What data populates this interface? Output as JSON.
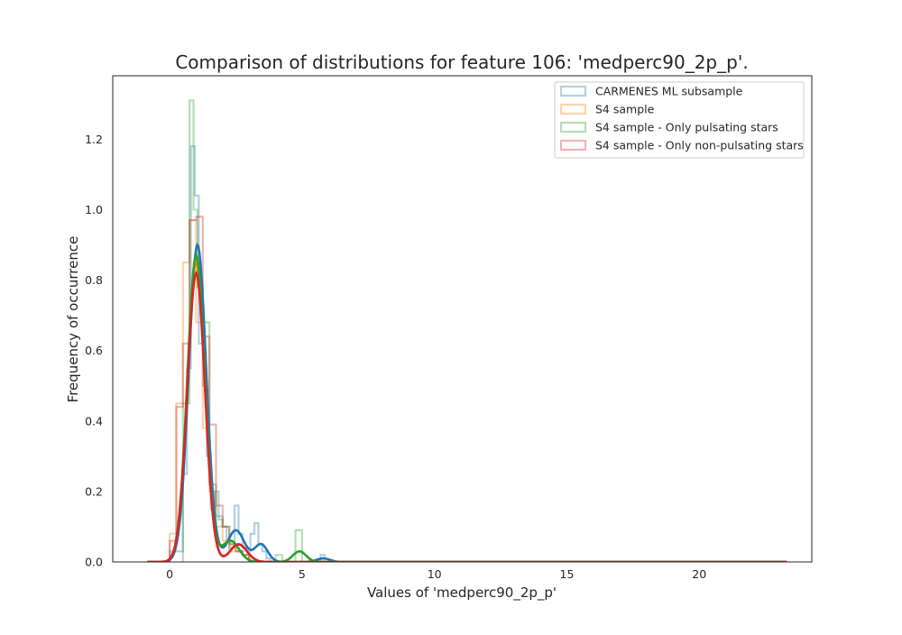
{
  "chart_data": {
    "type": "histogram+kde",
    "title": "Comparison of distributions for feature 106: 'medperc90_2p_p'.",
    "xlabel": "Values of 'medperc90_2p_p'",
    "ylabel": "Frequency of occurrence",
    "xlim": [
      -2.15,
      24.25
    ],
    "ylim": [
      0,
      1.38
    ],
    "xticks": [
      0,
      5,
      10,
      15,
      20
    ],
    "xtick_labels": [
      "0",
      "5",
      "10",
      "15",
      "20"
    ],
    "yticks": [
      0.0,
      0.2,
      0.4,
      0.6,
      0.8,
      1.0,
      1.2
    ],
    "ytick_labels": [
      "0.0",
      "0.2",
      "0.4",
      "0.6",
      "0.8",
      "1.0",
      "1.2"
    ],
    "grid": false,
    "legend_position": "upper-right",
    "series": [
      {
        "name": "CARMENES ML subsample",
        "color": "#1f77b4",
        "hist_bins": [
          [
            0.0,
            0.5,
            0.03
          ],
          [
            0.5,
            0.65,
            0.25
          ],
          [
            0.65,
            0.8,
            0.55
          ],
          [
            0.8,
            0.95,
            1.18
          ],
          [
            0.95,
            1.1,
            1.04
          ],
          [
            1.1,
            1.25,
            0.62
          ],
          [
            1.25,
            1.4,
            0.5
          ],
          [
            1.4,
            1.55,
            0.3
          ],
          [
            1.55,
            1.7,
            0.15
          ],
          [
            1.7,
            1.85,
            0.2
          ],
          [
            1.85,
            2.0,
            0.12
          ],
          [
            2.0,
            2.15,
            0.1
          ],
          [
            2.15,
            2.3,
            0.06
          ],
          [
            2.3,
            2.45,
            0.05
          ],
          [
            2.45,
            2.6,
            0.16
          ],
          [
            2.6,
            2.75,
            0.08
          ],
          [
            2.75,
            2.9,
            0.04
          ],
          [
            2.9,
            3.05,
            0.03
          ],
          [
            3.05,
            3.2,
            0.08
          ],
          [
            3.2,
            3.35,
            0.11
          ],
          [
            3.35,
            3.5,
            0.05
          ],
          [
            3.5,
            3.65,
            0.03
          ],
          [
            3.65,
            3.8,
            0.01
          ],
          [
            5.7,
            5.85,
            0.02
          ]
        ],
        "kde_peaks": [
          {
            "x": 1.05,
            "y": 0.9
          },
          {
            "x": 2.5,
            "y": 0.09
          },
          {
            "x": 3.45,
            "y": 0.05
          },
          {
            "x": 5.8,
            "y": 0.01
          }
        ]
      },
      {
        "name": "S4 sample",
        "color": "#ff7f0e",
        "hist_bins": [
          [
            0.0,
            0.25,
            0.08
          ],
          [
            0.25,
            0.5,
            0.45
          ],
          [
            0.5,
            0.75,
            0.85
          ],
          [
            0.75,
            1.0,
            0.97
          ],
          [
            1.0,
            1.25,
            0.68
          ],
          [
            1.25,
            1.5,
            0.38
          ],
          [
            1.5,
            1.75,
            0.2
          ],
          [
            1.75,
            2.0,
            0.1
          ],
          [
            2.0,
            2.25,
            0.06
          ],
          [
            2.25,
            2.5,
            0.03
          ],
          [
            2.5,
            2.75,
            0.03
          ],
          [
            2.75,
            3.0,
            0.02
          ]
        ],
        "kde_peaks": [
          {
            "x": 1.0,
            "y": 0.85
          },
          {
            "x": 2.6,
            "y": 0.05
          }
        ]
      },
      {
        "name": "S4 sample - Only pulsating stars",
        "color": "#2ca02c",
        "hist_bins": [
          [
            0.5,
            0.75,
            0.45
          ],
          [
            0.75,
            0.9,
            1.31
          ],
          [
            0.9,
            1.05,
            1.0
          ],
          [
            1.05,
            1.25,
            0.78
          ],
          [
            1.25,
            1.5,
            0.68
          ],
          [
            1.5,
            1.75,
            0.22
          ],
          [
            1.75,
            2.0,
            0.13
          ],
          [
            2.0,
            2.25,
            0.1
          ],
          [
            2.25,
            2.5,
            0.04
          ],
          [
            2.5,
            2.75,
            0.03
          ],
          [
            2.75,
            3.0,
            0.02
          ],
          [
            4.0,
            4.25,
            0.02
          ],
          [
            4.75,
            5.0,
            0.09
          ]
        ],
        "kde_peaks": [
          {
            "x": 1.0,
            "y": 0.87
          },
          {
            "x": 2.3,
            "y": 0.06
          },
          {
            "x": 4.9,
            "y": 0.03
          }
        ]
      },
      {
        "name": "S4 sample - Only non-pulsating stars",
        "color": "#d62728",
        "hist_bins": [
          [
            0.0,
            0.25,
            0.06
          ],
          [
            0.25,
            0.5,
            0.44
          ],
          [
            0.5,
            0.75,
            0.62
          ],
          [
            0.75,
            1.0,
            0.97
          ],
          [
            1.0,
            1.25,
            0.98
          ],
          [
            1.25,
            1.5,
            0.64
          ],
          [
            1.5,
            1.75,
            0.39
          ],
          [
            1.75,
            2.0,
            0.16
          ],
          [
            2.0,
            2.25,
            0.1
          ],
          [
            2.25,
            2.5,
            0.05
          ],
          [
            2.5,
            2.75,
            0.03
          ],
          [
            2.75,
            3.0,
            0.02
          ]
        ],
        "kde_peaks": [
          {
            "x": 1.0,
            "y": 0.82
          },
          {
            "x": 2.6,
            "y": 0.05
          }
        ]
      }
    ]
  }
}
